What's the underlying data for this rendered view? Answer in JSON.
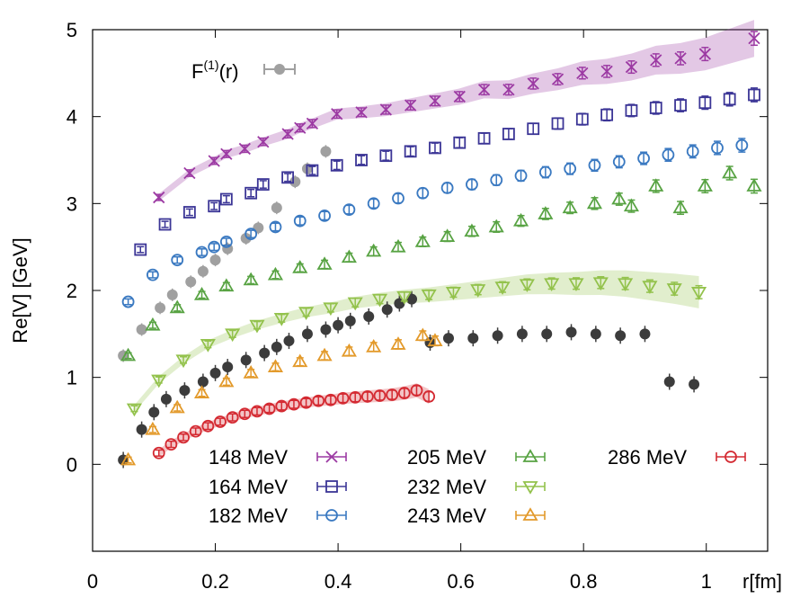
{
  "chart_data": {
    "type": "scatter",
    "title": "",
    "xlabel": "r[fm]",
    "ylabel": "Re[V] [GeV]",
    "xlim": [
      0,
      1.1
    ],
    "ylim": [
      -1,
      5
    ],
    "x_ticks": [
      0,
      0.2,
      0.4,
      0.6,
      0.8,
      1
    ],
    "x_tick_labels": [
      "0",
      "0.2",
      "0.4",
      "0.6",
      "0.8",
      "1"
    ],
    "y_ticks": [
      0,
      1,
      2,
      3,
      4,
      5
    ],
    "y_tick_labels": [
      "0",
      "1",
      "2",
      "3",
      "4",
      "5"
    ],
    "grid": false,
    "legend_position": "bottom",
    "f1_label": "F(1)(r)",
    "f1_label_base": "F",
    "f1_label_sup": "(1)",
    "f1_label_arg": "(r)",
    "colors": {
      "gray": "#a0a0a0",
      "dark": "#3c3c3c"
    },
    "series": [
      {
        "name": "148 MeV",
        "color": "#9c3aa3",
        "marker": "x",
        "band": true,
        "x": [
          0.108,
          0.158,
          0.198,
          0.218,
          0.248,
          0.278,
          0.318,
          0.338,
          0.358,
          0.398,
          0.438,
          0.478,
          0.518,
          0.558,
          0.598,
          0.638,
          0.678,
          0.718,
          0.758,
          0.798,
          0.838,
          0.878,
          0.918,
          0.958,
          0.998,
          1.078
        ],
        "y": [
          3.07,
          3.35,
          3.49,
          3.57,
          3.63,
          3.71,
          3.8,
          3.87,
          3.92,
          4.03,
          4.05,
          4.08,
          4.13,
          4.18,
          4.23,
          4.31,
          4.31,
          4.38,
          4.43,
          4.5,
          4.52,
          4.57,
          4.65,
          4.67,
          4.72,
          4.9
        ]
      },
      {
        "name": "164 MeV",
        "color": "#3b3596",
        "marker": "square",
        "band": false,
        "x": [
          0.078,
          0.118,
          0.158,
          0.198,
          0.218,
          0.258,
          0.278,
          0.318,
          0.358,
          0.398,
          0.438,
          0.478,
          0.518,
          0.558,
          0.598,
          0.638,
          0.678,
          0.718,
          0.758,
          0.798,
          0.838,
          0.878,
          0.918,
          0.958,
          0.998,
          1.038,
          1.078
        ],
        "y": [
          2.47,
          2.76,
          2.9,
          2.97,
          3.05,
          3.12,
          3.22,
          3.3,
          3.38,
          3.44,
          3.5,
          3.55,
          3.6,
          3.64,
          3.7,
          3.75,
          3.8,
          3.86,
          3.92,
          3.97,
          4.02,
          4.07,
          4.1,
          4.13,
          4.16,
          4.2,
          4.25
        ]
      },
      {
        "name": "182 MeV",
        "color": "#3a79c1",
        "marker": "circle",
        "band": false,
        "x": [
          0.058,
          0.098,
          0.138,
          0.178,
          0.198,
          0.218,
          0.258,
          0.298,
          0.338,
          0.378,
          0.418,
          0.458,
          0.498,
          0.538,
          0.578,
          0.618,
          0.658,
          0.698,
          0.738,
          0.778,
          0.818,
          0.858,
          0.898,
          0.938,
          0.978,
          1.018,
          1.058
        ],
        "y": [
          1.87,
          2.18,
          2.35,
          2.44,
          2.5,
          2.56,
          2.65,
          2.73,
          2.8,
          2.86,
          2.93,
          3.0,
          3.06,
          3.12,
          3.18,
          3.22,
          3.27,
          3.32,
          3.36,
          3.4,
          3.44,
          3.48,
          3.52,
          3.56,
          3.6,
          3.64,
          3.67
        ]
      },
      {
        "name": "205 MeV",
        "color": "#58a343",
        "marker": "triangle-up",
        "band": false,
        "x": [
          0.058,
          0.098,
          0.138,
          0.178,
          0.218,
          0.258,
          0.298,
          0.338,
          0.378,
          0.418,
          0.458,
          0.498,
          0.538,
          0.578,
          0.618,
          0.658,
          0.698,
          0.738,
          0.778,
          0.818,
          0.858,
          0.878,
          0.918,
          0.958,
          0.998,
          1.038,
          1.078
        ],
        "y": [
          1.25,
          1.6,
          1.8,
          1.95,
          2.05,
          2.12,
          2.18,
          2.26,
          2.3,
          2.38,
          2.45,
          2.5,
          2.56,
          2.62,
          2.68,
          2.73,
          2.8,
          2.88,
          2.95,
          3.0,
          3.05,
          2.97,
          3.2,
          2.95,
          3.2,
          3.35,
          3.2
        ]
      },
      {
        "name": "232 MeV",
        "color": "#93c24c",
        "marker": "triangle-down",
        "band": true,
        "x": [
          0.068,
          0.108,
          0.148,
          0.188,
          0.228,
          0.268,
          0.308,
          0.348,
          0.388,
          0.428,
          0.468,
          0.508,
          0.548,
          0.588,
          0.628,
          0.668,
          0.708,
          0.748,
          0.788,
          0.828,
          0.868,
          0.908,
          0.948,
          0.988
        ],
        "y": [
          0.64,
          0.97,
          1.2,
          1.38,
          1.5,
          1.6,
          1.68,
          1.75,
          1.8,
          1.86,
          1.9,
          1.93,
          1.95,
          1.98,
          2.01,
          2.04,
          2.07,
          2.08,
          2.08,
          2.09,
          2.08,
          2.05,
          2.02,
          1.98
        ]
      },
      {
        "name": "243 MeV",
        "color": "#e39a2b",
        "marker": "triangle-up",
        "band": false,
        "x": [
          0.058,
          0.098,
          0.138,
          0.178,
          0.218,
          0.258,
          0.298,
          0.338,
          0.378,
          0.418,
          0.458,
          0.498,
          0.538,
          0.558
        ],
        "y": [
          0.05,
          0.4,
          0.65,
          0.82,
          0.95,
          1.05,
          1.12,
          1.18,
          1.25,
          1.3,
          1.35,
          1.38,
          1.48,
          1.42
        ]
      },
      {
        "name": "286 MeV",
        "color": "#d42a32",
        "marker": "circle",
        "band": true,
        "x": [
          0.108,
          0.128,
          0.148,
          0.168,
          0.188,
          0.208,
          0.228,
          0.248,
          0.268,
          0.288,
          0.308,
          0.328,
          0.348,
          0.368,
          0.388,
          0.408,
          0.428,
          0.448,
          0.468,
          0.488,
          0.508,
          0.528,
          0.548
        ],
        "y": [
          0.13,
          0.23,
          0.31,
          0.38,
          0.44,
          0.49,
          0.54,
          0.58,
          0.61,
          0.64,
          0.67,
          0.69,
          0.71,
          0.73,
          0.74,
          0.76,
          0.77,
          0.78,
          0.79,
          0.8,
          0.82,
          0.85,
          0.78
        ]
      }
    ],
    "gray_points": {
      "x": [
        0.05,
        0.08,
        0.11,
        0.13,
        0.16,
        0.18,
        0.2,
        0.22,
        0.25,
        0.27,
        0.3,
        0.33,
        0.35,
        0.38
      ],
      "y": [
        1.25,
        1.55,
        1.8,
        1.95,
        2.1,
        2.22,
        2.35,
        2.48,
        2.6,
        2.72,
        2.95,
        3.25,
        3.4,
        3.6
      ]
    },
    "dark_points": {
      "x": [
        0.05,
        0.08,
        0.1,
        0.12,
        0.15,
        0.18,
        0.2,
        0.22,
        0.25,
        0.28,
        0.3,
        0.32,
        0.35,
        0.38,
        0.4,
        0.42,
        0.45,
        0.48,
        0.5,
        0.52,
        0.55,
        0.58,
        0.62,
        0.66,
        0.7,
        0.74,
        0.78,
        0.82,
        0.86,
        0.9,
        0.94,
        0.98
      ],
      "y": [
        0.05,
        0.4,
        0.6,
        0.75,
        0.85,
        0.95,
        1.05,
        1.12,
        1.2,
        1.28,
        1.35,
        1.42,
        1.5,
        1.55,
        1.6,
        1.65,
        1.7,
        1.78,
        1.85,
        1.9,
        1.4,
        1.45,
        1.45,
        1.48,
        1.5,
        1.5,
        1.52,
        1.5,
        1.48,
        1.5,
        0.95,
        0.92
      ]
    }
  }
}
